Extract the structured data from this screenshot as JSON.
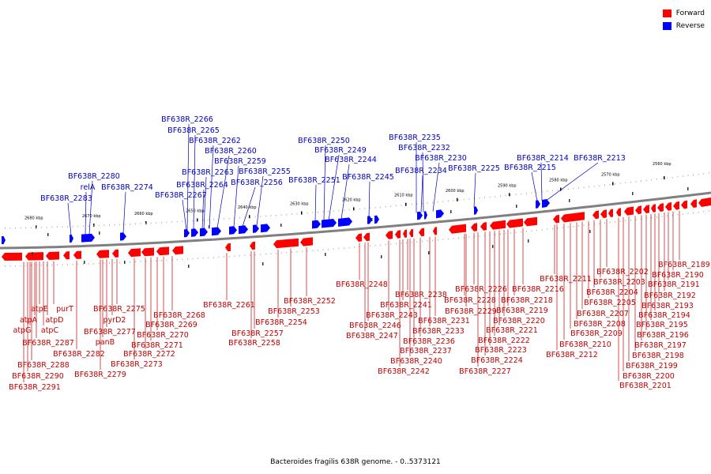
{
  "legend": {
    "items": [
      {
        "label": "Forward",
        "color": "#ff0000"
      },
      {
        "label": "Reverse",
        "color": "#0000ff"
      }
    ]
  },
  "caption": "Bacteroides fragilis 638R genome. - 0..5373121",
  "colors": {
    "forward": "#ff0000",
    "reverse": "#0000ff",
    "backbone": "#808080",
    "label_forward": "#c00000",
    "label_reverse": "#0000c0"
  },
  "ticks": [
    "2680 kbp",
    "2670 kbp",
    "2660 kbp",
    "2650 kbp",
    "2640 kbp",
    "2630 kbp",
    "2620 kbp",
    "2610 kbp",
    "2600 kbp",
    "2590 kbp",
    "2580 kbp",
    "2570 kbp",
    "2560 kbp"
  ],
  "reverse_labels": [
    "BF638R_2283",
    "relA",
    "BF638R_2280",
    "BF638R_2274",
    "BF638R_2267",
    "BF638R_2266",
    "BF638R_2265",
    "BF638R_2264",
    "BF638R_2263",
    "BF638R_2262",
    "BF638R_2260",
    "BF638R_2259",
    "BF638R_2256",
    "BF638R_2255",
    "BF638R_2251",
    "BF638R_2250",
    "BF638R_2249",
    "BF638R_2245",
    "BF638R_2244",
    "BF638R_2235",
    "BF638R_2234",
    "BF638R_2232",
    "BF638R_2230",
    "BF638R_2225",
    "BF638R_2215",
    "BF638R_2214",
    "BF638R_2213"
  ],
  "forward_labels": [
    "BF638R_2291",
    "BF638R_2290",
    "BF638R_2288",
    "BF638R_2287",
    "atpG",
    "atpA",
    "atpE",
    "atpC",
    "atpD",
    "purT",
    "BF638R_2282",
    "BF638R_2279",
    "panB",
    "BF638R_2277",
    "pyrD2",
    "BF638R_2275",
    "BF638R_2273",
    "BF638R_2272",
    "BF638R_2271",
    "BF638R_2270",
    "BF638R_2269",
    "BF638R_2268",
    "BF638R_2261",
    "BF638R_2258",
    "BF638R_2257",
    "BF638R_2254",
    "BF638R_2253",
    "BF638R_2252",
    "BF638R_2248",
    "BF638R_2247",
    "BF638R_2246",
    "BF638R_2243",
    "BF638R_2242",
    "BF638R_2241",
    "BF638R_2240",
    "BF638R_2238",
    "BF638R_2237",
    "BF638R_2236",
    "BF638R_2233",
    "BF638R_2231",
    "BF638R_2229",
    "BF638R_2228",
    "BF638R_2227",
    "BF638R_2226",
    "BF638R_2224",
    "BF638R_2223",
    "BF638R_2222",
    "BF638R_2221",
    "BF638R_2220",
    "BF638R_2219",
    "BF638R_2218",
    "BF638R_2216",
    "BF638R_2212",
    "BF638R_2211",
    "BF638R_2210",
    "BF638R_2209",
    "BF638R_2208",
    "BF638R_2207",
    "BF638R_2205",
    "BF638R_2204",
    "BF638R_2203",
    "BF638R_2202",
    "BF638R_2201",
    "BF638R_2200",
    "BF638R_2199",
    "BF638R_2198",
    "BF638R_2197",
    "BF638R_2196",
    "BF638R_2195",
    "BF638R_2194",
    "BF638R_2193",
    "BF638R_2192",
    "BF638R_2191",
    "BF638R_2190",
    "BF638R_2189"
  ]
}
